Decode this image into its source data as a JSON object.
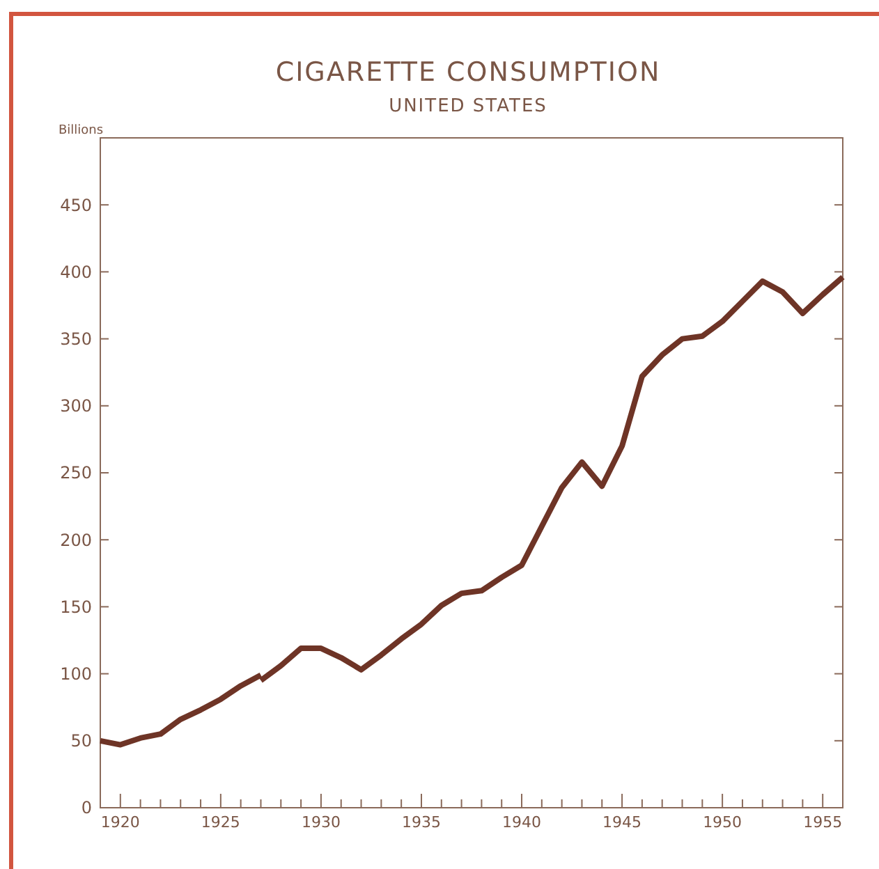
{
  "chart_data": {
    "type": "line",
    "title": "CIGARETTE CONSUMPTION",
    "subtitle": "UNITED STATES",
    "ylabel": "Billions",
    "series": [
      {
        "color": "#6e3426",
        "x": [
          1919,
          1920,
          1921,
          1922,
          1923,
          1924,
          1925,
          1926,
          1927
        ],
        "values": [
          50,
          47,
          52,
          55,
          66,
          73,
          81,
          91,
          99
        ]
      },
      {
        "color": "#6e3426",
        "x": [
          1927,
          1928,
          1929,
          1930,
          1931,
          1932,
          1933,
          1934,
          1935,
          1936,
          1937,
          1938,
          1939,
          1940,
          1941,
          1942,
          1943,
          1944,
          1945,
          1946,
          1947,
          1948,
          1949,
          1950,
          1951,
          1952,
          1953,
          1954,
          1955,
          1956
        ],
        "values": [
          95,
          106,
          119,
          119,
          112,
          103,
          114,
          126,
          137,
          151,
          160,
          162,
          172,
          181,
          210,
          239,
          258,
          240,
          270,
          322,
          338,
          350,
          352,
          363,
          378,
          393,
          385,
          369,
          383,
          396
        ]
      }
    ],
    "xlim": [
      1919,
      1956
    ],
    "ylim": [
      0,
      500
    ],
    "xticks": [
      {
        "value": 1920,
        "label": "1920"
      },
      {
        "value": 1921,
        "label": null
      },
      {
        "value": 1922,
        "label": null
      },
      {
        "value": 1923,
        "label": null
      },
      {
        "value": 1924,
        "label": null
      },
      {
        "value": 1925,
        "label": "1925"
      },
      {
        "value": 1926,
        "label": null
      },
      {
        "value": 1927,
        "label": null
      },
      {
        "value": 1928,
        "label": null
      },
      {
        "value": 1929,
        "label": null
      },
      {
        "value": 1930,
        "label": "1930"
      },
      {
        "value": 1931,
        "label": null
      },
      {
        "value": 1932,
        "label": null
      },
      {
        "value": 1933,
        "label": null
      },
      {
        "value": 1934,
        "label": null
      },
      {
        "value": 1935,
        "label": "1935"
      },
      {
        "value": 1936,
        "label": null
      },
      {
        "value": 1937,
        "label": null
      },
      {
        "value": 1938,
        "label": null
      },
      {
        "value": 1939,
        "label": null
      },
      {
        "value": 1940,
        "label": "1940"
      },
      {
        "value": 1941,
        "label": null
      },
      {
        "value": 1942,
        "label": null
      },
      {
        "value": 1943,
        "label": null
      },
      {
        "value": 1944,
        "label": null
      },
      {
        "value": 1945,
        "label": "1945"
      },
      {
        "value": 1946,
        "label": null
      },
      {
        "value": 1947,
        "label": null
      },
      {
        "value": 1948,
        "label": null
      },
      {
        "value": 1949,
        "label": null
      },
      {
        "value": 1950,
        "label": "1950"
      },
      {
        "value": 1951,
        "label": null
      },
      {
        "value": 1952,
        "label": null
      },
      {
        "value": 1953,
        "label": null
      },
      {
        "value": 1954,
        "label": null
      },
      {
        "value": 1955,
        "label": "1955"
      }
    ],
    "yticks": [
      0,
      50,
      100,
      150,
      200,
      250,
      300,
      350,
      400,
      450
    ],
    "grid": false,
    "marker": "none",
    "line_style": "solid"
  }
}
